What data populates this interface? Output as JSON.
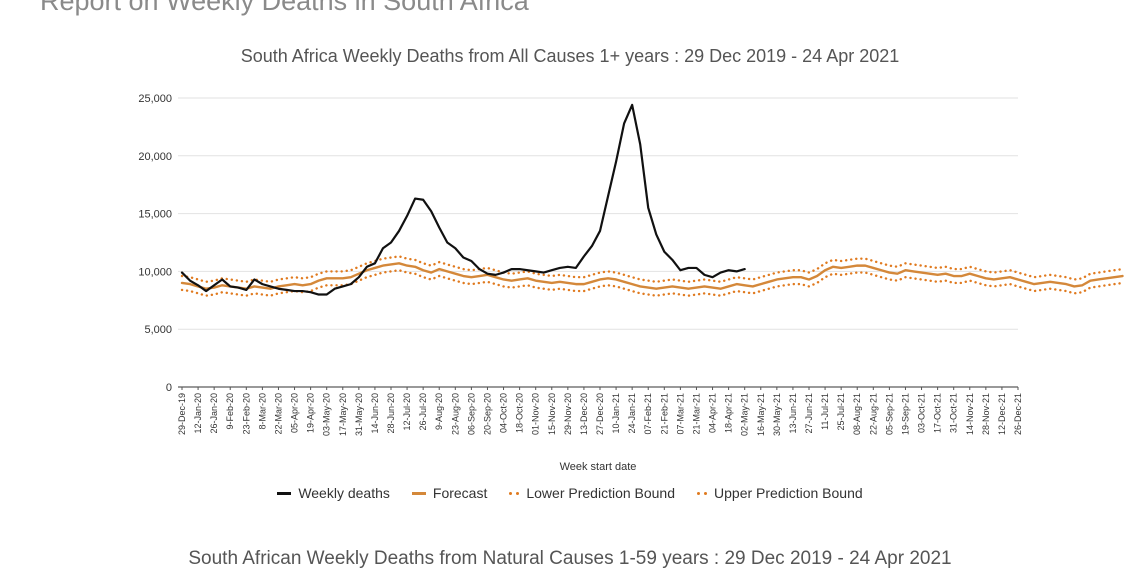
{
  "page": {
    "heading": "Report on Weekly Deaths in South Africa",
    "second_chart_title": "South African Weekly Deaths from Natural Causes 1-59 years : 29 Dec 2019 - 24 Apr 2021"
  },
  "colors": {
    "weekly": "#111111",
    "forecast": "#d4883a",
    "bound": "#e07a1f",
    "grid": "#e2e2e2",
    "axis_text": "#333333"
  },
  "chart_data": {
    "type": "line",
    "title": "South Africa Weekly Deaths from All Causes 1+ years : 29 Dec 2019 - 24 Apr 2021",
    "xlabel": "Week start date",
    "ylabel": "",
    "ylim": [
      0,
      25000
    ],
    "yticks": [
      0,
      5000,
      10000,
      15000,
      20000,
      25000
    ],
    "ytick_labels": [
      "0",
      "5,000",
      "10,000",
      "15,000",
      "20,000",
      "25,000"
    ],
    "grid": true,
    "legend_position": "bottom",
    "x_tick_labels": [
      "29-Dec-19",
      "12-Jan-20",
      "26-Jan-20",
      "9-Feb-20",
      "23-Feb-20",
      "8-Mar-20",
      "22-Mar-20",
      "05-Apr-20",
      "19-Apr-20",
      "03-May-20",
      "17-May-20",
      "31-May-20",
      "14-Jun-20",
      "28-Jun-20",
      "12-Jul-20",
      "26-Jul-20",
      "9-Aug-20",
      "23-Aug-20",
      "06-Sep-20",
      "20-Sep-20",
      "04-Oct-20",
      "18-Oct-20",
      "01-Nov-20",
      "15-Nov-20",
      "29-Nov-20",
      "13-Dec-20",
      "27-Dec-20",
      "10-Jan-21",
      "24-Jan-21",
      "07-Feb-21",
      "21-Feb-21",
      "07-Mar-21",
      "21-Mar-21",
      "04-Apr-21",
      "18-Apr-21",
      "02-May-21",
      "16-May-21",
      "30-May-21",
      "13-Jun-21",
      "27-Jun-21",
      "11-Jul-21",
      "25-Jul-21",
      "08-Aug-21",
      "22-Aug-21",
      "05-Sep-21",
      "19-Sep-21",
      "03-Oct-21",
      "17-Oct-21",
      "31-Oct-21",
      "14-Nov-21",
      "28-Nov-21",
      "12-Dec-21",
      "26-Dec-21"
    ],
    "series": [
      {
        "name": "Weekly deaths",
        "style": "solid",
        "values": [
          9900,
          9200,
          8800,
          8300,
          8800,
          9300,
          8700,
          8600,
          8400,
          9300,
          8900,
          8700,
          8500,
          8400,
          8300,
          8300,
          8200,
          8000,
          8000,
          8500,
          8700,
          8900,
          9500,
          10400,
          10700,
          12000,
          12500,
          13500,
          14800,
          16300,
          16200,
          15200,
          13800,
          12500,
          12000,
          11200,
          10900,
          10200,
          9800,
          9700,
          9900,
          10200,
          10200,
          10100,
          10000,
          9900,
          10100,
          10300,
          10400,
          10300,
          11300,
          12200,
          13500,
          16500,
          19500,
          22800,
          24400,
          21000,
          15500,
          13200,
          11700,
          11000,
          10100,
          10300,
          10300,
          9700,
          9500,
          9900,
          10100,
          10000,
          10200
        ],
        "color": "#111111"
      },
      {
        "name": "Forecast",
        "style": "solid",
        "values": [
          9000,
          8900,
          8700,
          8500,
          8600,
          8800,
          8700,
          8600,
          8500,
          8700,
          8600,
          8500,
          8700,
          8800,
          8900,
          8800,
          8900,
          9200,
          9400,
          9400,
          9400,
          9500,
          9800,
          10100,
          10300,
          10500,
          10600,
          10700,
          10500,
          10400,
          10100,
          9900,
          10200,
          10000,
          9800,
          9600,
          9500,
          9600,
          9700,
          9500,
          9300,
          9200,
          9300,
          9400,
          9200,
          9100,
          9000,
          9100,
          9000,
          8900,
          8900,
          9100,
          9300,
          9400,
          9300,
          9100,
          8900,
          8700,
          8600,
          8500,
          8600,
          8700,
          8600,
          8500,
          8600,
          8700,
          8600,
          8500,
          8700,
          8900,
          8800,
          8700,
          8900,
          9100,
          9300,
          9400,
          9500,
          9500,
          9300,
          9600,
          10100,
          10400,
          10300,
          10400,
          10500,
          10500,
          10300,
          10100,
          9900,
          9800,
          10100,
          10000,
          9900,
          9800,
          9700,
          9800,
          9600,
          9600,
          9800,
          9600,
          9400,
          9300,
          9400,
          9500,
          9300,
          9100,
          8900,
          9000,
          9100,
          9000,
          8900,
          8700,
          8800,
          9200,
          9300,
          9400,
          9500,
          9600
        ],
        "color": "#d4883a"
      },
      {
        "name": "Lower Prediction Bound",
        "style": "dotted",
        "values": [
          8400,
          8300,
          8100,
          7900,
          8000,
          8200,
          8100,
          8000,
          7900,
          8100,
          8000,
          7900,
          8100,
          8200,
          8300,
          8200,
          8300,
          8600,
          8800,
          8800,
          8800,
          8900,
          9200,
          9500,
          9700,
          9900,
          10000,
          10100,
          9900,
          9800,
          9500,
          9300,
          9600,
          9400,
          9200,
          9000,
          8900,
          9000,
          9100,
          8900,
          8700,
          8600,
          8700,
          8800,
          8600,
          8500,
          8400,
          8500,
          8400,
          8300,
          8300,
          8500,
          8700,
          8800,
          8700,
          8500,
          8300,
          8100,
          8000,
          7900,
          8000,
          8100,
          8000,
          7900,
          8000,
          8100,
          8000,
          7900,
          8100,
          8300,
          8200,
          8100,
          8300,
          8500,
          8700,
          8800,
          8900,
          8900,
          8700,
          9000,
          9500,
          9800,
          9700,
          9800,
          9900,
          9900,
          9700,
          9500,
          9300,
          9200,
          9500,
          9400,
          9300,
          9200,
          9100,
          9200,
          9000,
          9000,
          9200,
          9000,
          8800,
          8700,
          8800,
          8900,
          8700,
          8500,
          8300,
          8400,
          8500,
          8400,
          8300,
          8100,
          8200,
          8600,
          8700,
          8800,
          8900,
          9000
        ],
        "color": "#e07a1f"
      },
      {
        "name": "Upper Prediction Bound",
        "style": "dotted",
        "values": [
          9600,
          9500,
          9300,
          9100,
          9200,
          9400,
          9300,
          9200,
          9100,
          9300,
          9200,
          9100,
          9300,
          9400,
          9500,
          9400,
          9500,
          9800,
          10000,
          10000,
          10000,
          10100,
          10400,
          10700,
          10900,
          11100,
          11200,
          11300,
          11100,
          11000,
          10700,
          10500,
          10800,
          10600,
          10400,
          10200,
          10100,
          10200,
          10300,
          10100,
          9900,
          9800,
          9900,
          10000,
          9800,
          9700,
          9600,
          9700,
          9600,
          9500,
          9500,
          9700,
          9900,
          10000,
          9900,
          9700,
          9500,
          9300,
          9200,
          9100,
          9200,
          9300,
          9200,
          9100,
          9200,
          9300,
          9200,
          9100,
          9300,
          9500,
          9400,
          9300,
          9500,
          9700,
          9900,
          10000,
          10100,
          10100,
          9900,
          10200,
          10700,
          11000,
          10900,
          11000,
          11100,
          11100,
          10900,
          10700,
          10500,
          10400,
          10700,
          10600,
          10500,
          10400,
          10300,
          10400,
          10200,
          10200,
          10400,
          10200,
          10000,
          9900,
          10000,
          10100,
          9900,
          9700,
          9500,
          9600,
          9700,
          9600,
          9500,
          9300,
          9400,
          9800,
          9900,
          10000,
          10100,
          10200
        ],
        "color": "#e07a1f"
      }
    ]
  }
}
